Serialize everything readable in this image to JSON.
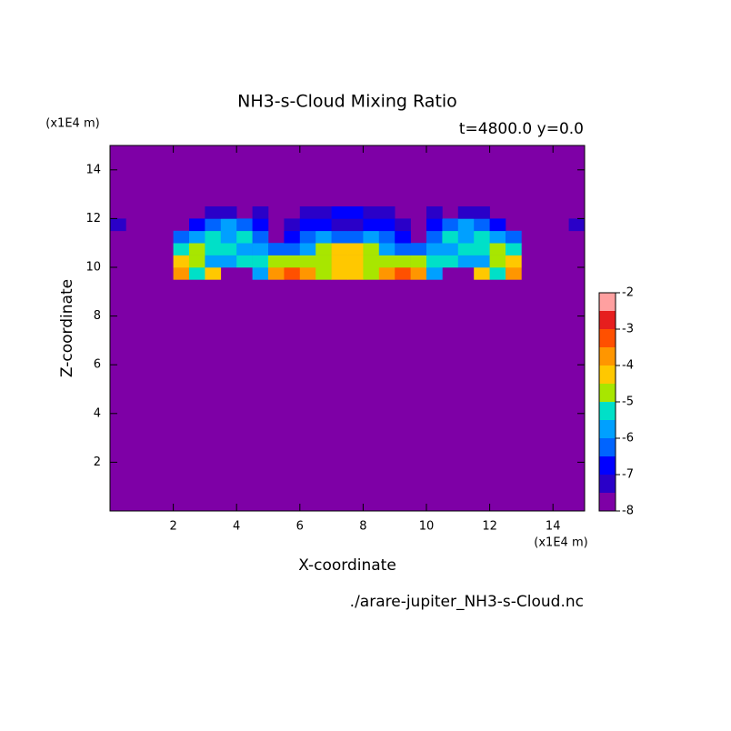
{
  "chart_data": {
    "type": "contour",
    "title": "NH3-s-Cloud Mixing Ratio",
    "subtitle": "t=4800.0 y=0.0",
    "y_unit": "(x1E4 m)",
    "x_unit": "(x1E4 m)",
    "xlabel": "X-coordinate",
    "ylabel": "Z-coordinate",
    "filename": "./arare-jupiter_NH3-s-Cloud.nc",
    "xlim": [
      0,
      15
    ],
    "ylim": [
      0,
      15
    ],
    "xticks": [
      2,
      4,
      6,
      8,
      10,
      12,
      14
    ],
    "yticks": [
      2,
      4,
      6,
      8,
      10,
      12,
      14
    ],
    "levels": [
      -8,
      -7.5,
      -7,
      -6.5,
      -6,
      -5.5,
      -5,
      -4.5,
      -4,
      -3.5,
      -3,
      -2.5,
      -2
    ],
    "colors": [
      "#7e00a6",
      "#2a00c8",
      "#0000ff",
      "#0064ff",
      "#00a0ff",
      "#00e0c8",
      "#a8e600",
      "#ffc800",
      "#ff9600",
      "#ff5000",
      "#e61e1e",
      "#ffa0a0"
    ],
    "colorbar_ticks": [
      -8,
      -7,
      -6,
      -5,
      -4,
      -3,
      -2
    ],
    "x": [
      0.25,
      0.75,
      1.25,
      1.75,
      2.25,
      2.75,
      3.25,
      3.75,
      4.25,
      4.75,
      5.25,
      5.75,
      6.25,
      6.75,
      7.25,
      7.75,
      8.25,
      8.75,
      9.25,
      9.75,
      10.25,
      10.75,
      11.25,
      11.75,
      12.25,
      12.75,
      13.25,
      13.75,
      14.25,
      14.75
    ],
    "z": [
      9.75,
      10.25,
      10.75,
      11.25,
      11.75,
      12.25
    ],
    "values": [
      [
        null,
        null,
        null,
        null,
        -4.0,
        -5.5,
        -4.3,
        null,
        null,
        -5.6,
        -4.0,
        -3.4,
        -4.0,
        -4.6,
        -4.2,
        -4.2,
        -4.6,
        -4.0,
        -3.4,
        -4.0,
        -5.6,
        null,
        null,
        -4.3,
        -5.5,
        -4.0,
        null,
        null,
        null,
        null
      ],
      [
        null,
        null,
        null,
        null,
        -4.3,
        -5.0,
        -6.0,
        -5.6,
        -5.3,
        -5.5,
        -5.0,
        -4.6,
        -4.6,
        -5.0,
        -4.2,
        -4.2,
        -5.0,
        -4.6,
        -4.6,
        -5.0,
        -5.5,
        -5.3,
        -5.6,
        -6.0,
        -5.0,
        -4.3,
        null,
        null,
        null,
        null
      ],
      [
        null,
        null,
        null,
        null,
        -5.2,
        -5.0,
        -5.5,
        -5.3,
        -5.8,
        -5.6,
        -6.5,
        -6.5,
        -5.8,
        -5.0,
        -4.3,
        -4.3,
        -5.0,
        -5.8,
        -6.5,
        -6.5,
        -5.6,
        -5.8,
        -5.3,
        -5.5,
        -5.0,
        -5.2,
        null,
        null,
        null,
        null
      ],
      [
        null,
        null,
        null,
        null,
        -6.5,
        -5.8,
        -5.5,
        -5.8,
        -5.5,
        -6.2,
        null,
        -7.0,
        -6.3,
        -6.0,
        -6.5,
        -6.5,
        -6.0,
        -6.3,
        -7.0,
        null,
        -6.2,
        -5.5,
        -5.8,
        -5.5,
        -5.8,
        -6.5,
        null,
        null,
        null,
        null
      ],
      [
        -7.2,
        null,
        null,
        null,
        null,
        -6.8,
        -6.2,
        -6.0,
        -6.3,
        -7.0,
        null,
        -7.3,
        -7.0,
        -6.8,
        -7.2,
        -7.2,
        -6.8,
        -7.0,
        -7.3,
        null,
        -7.0,
        -6.3,
        -6.0,
        -6.2,
        -6.8,
        null,
        null,
        null,
        null,
        -7.2
      ],
      [
        null,
        null,
        null,
        null,
        null,
        null,
        -7.3,
        -7.3,
        null,
        -7.3,
        null,
        null,
        -7.2,
        -7.2,
        -7.0,
        -7.0,
        -7.2,
        -7.2,
        null,
        null,
        -7.3,
        null,
        -7.3,
        -7.3,
        null,
        null,
        null,
        null,
        null,
        null
      ]
    ]
  }
}
